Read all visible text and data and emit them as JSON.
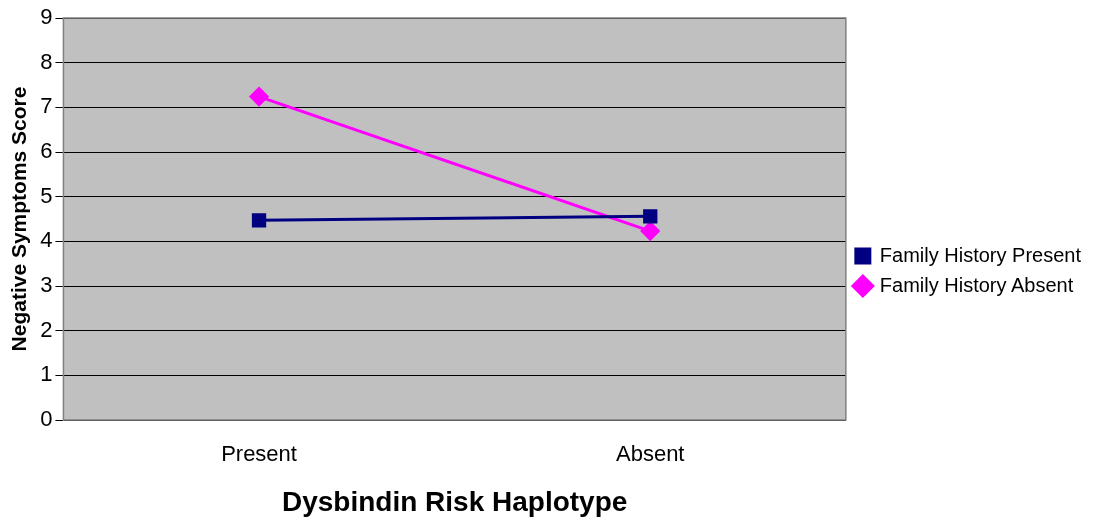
{
  "chart_data": {
    "type": "line",
    "xlabel": "Dysbindin Risk Haplotype",
    "ylabel": "Negative Symptoms Score",
    "categories": [
      "Present",
      "Absent"
    ],
    "series": [
      {
        "name": "Family History Present",
        "color": "#000080",
        "marker": "square",
        "values": [
          4.47,
          4.56
        ]
      },
      {
        "name": "Family History Absent",
        "color": "#ff00ff",
        "marker": "diamond",
        "values": [
          7.24,
          4.23
        ]
      }
    ],
    "ylim": [
      0,
      9
    ],
    "yticks": [
      0,
      1,
      2,
      3,
      4,
      5,
      6,
      7,
      8,
      9
    ],
    "grid": "y",
    "legend": "right"
  }
}
